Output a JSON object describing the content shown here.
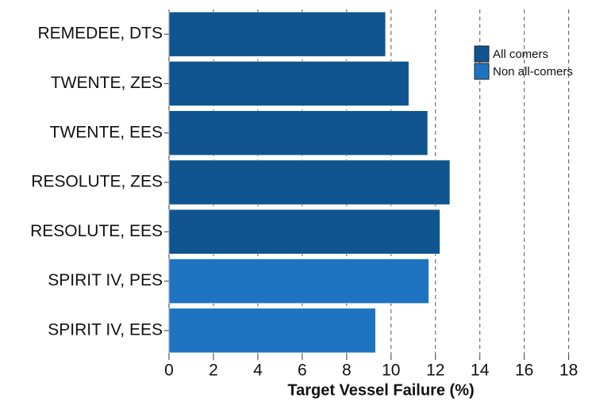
{
  "chart_data": {
    "type": "bar",
    "orientation": "horizontal",
    "x_label": "Target Vessel Failure (%)",
    "categories": [
      "REMEDEE, DTS",
      "TWENTE, ZES",
      "TWENTE, EES",
      "RESOLUTE, ZES",
      "RESOLUTE, EES",
      "SPIRIT IV, PES",
      "SPIRIT IV, EES"
    ],
    "series": [
      {
        "name": "All comers",
        "color": "#10558f",
        "values": [
          9.75,
          10.8,
          11.65,
          12.65,
          12.2,
          null,
          null
        ]
      },
      {
        "name": "Non all-comers",
        "color": "#1f74c1",
        "values": [
          null,
          null,
          null,
          null,
          null,
          11.7,
          9.3
        ]
      }
    ],
    "xlim": [
      0,
      18.8
    ],
    "xticks": [
      0,
      2,
      4,
      6,
      8,
      10,
      12,
      14,
      16,
      18
    ],
    "grid": true,
    "legend": "top-right"
  }
}
